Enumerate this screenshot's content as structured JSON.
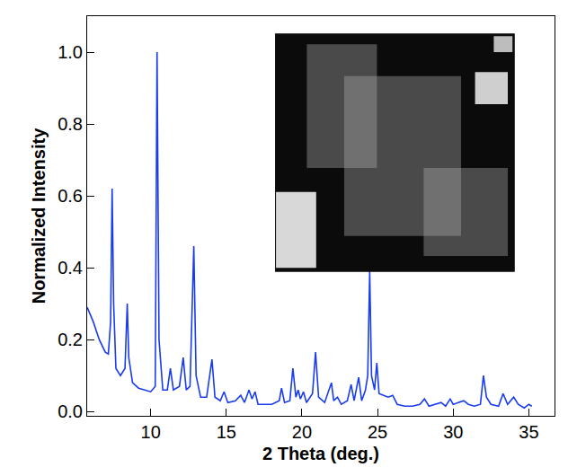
{
  "chart_data": {
    "type": "line",
    "x_label": "2 Theta (deg.)",
    "y_label": "Normalized Intensity",
    "color": "#1a3cf0",
    "grid": false,
    "xlim": [
      5.8,
      36.7
    ],
    "ylim": [
      -0.012,
      1.1
    ],
    "xticks": [
      10,
      15,
      20,
      25,
      30,
      35
    ],
    "yticks": [
      {
        "value": 0,
        "label": "0.0"
      },
      0.2,
      0.4,
      0.6,
      0.8,
      {
        "value": 1,
        "label": "1.0"
      }
    ],
    "x": [
      5.8,
      6.2,
      6.6,
      7.0,
      7.2,
      7.35,
      7.45,
      7.55,
      7.7,
      8.0,
      8.3,
      8.45,
      8.55,
      8.8,
      9.2,
      9.6,
      10.0,
      10.3,
      10.42,
      10.55,
      10.8,
      11.1,
      11.3,
      11.5,
      11.9,
      12.15,
      12.35,
      12.6,
      12.85,
      13.0,
      13.3,
      13.7,
      14.05,
      14.25,
      14.6,
      14.85,
      15.1,
      15.6,
      15.95,
      16.2,
      16.5,
      16.7,
      16.9,
      17.1,
      17.5,
      18.0,
      18.5,
      18.65,
      18.85,
      19.2,
      19.4,
      19.6,
      19.75,
      19.9,
      20.1,
      20.3,
      20.7,
      20.9,
      21.1,
      21.5,
      21.95,
      22.1,
      22.35,
      22.6,
      23.0,
      23.25,
      23.45,
      23.75,
      23.95,
      24.2,
      24.35,
      24.48,
      24.6,
      24.8,
      24.95,
      25.1,
      25.4,
      25.7,
      26.0,
      26.3,
      26.8,
      27.3,
      27.8,
      28.1,
      28.4,
      28.8,
      29.2,
      29.5,
      29.8,
      30.0,
      30.4,
      30.7,
      31.0,
      31.4,
      31.8,
      32.0,
      32.2,
      32.5,
      33.0,
      33.3,
      33.6,
      34.0,
      34.3,
      34.7,
      35.0,
      35.2
    ],
    "values": [
      0.29,
      0.25,
      0.2,
      0.165,
      0.16,
      0.25,
      0.62,
      0.3,
      0.12,
      0.1,
      0.12,
      0.3,
      0.15,
      0.08,
      0.065,
      0.06,
      0.055,
      0.07,
      1.0,
      0.2,
      0.06,
      0.06,
      0.12,
      0.06,
      0.07,
      0.15,
      0.06,
      0.07,
      0.46,
      0.1,
      0.04,
      0.04,
      0.145,
      0.04,
      0.03,
      0.055,
      0.025,
      0.03,
      0.045,
      0.025,
      0.06,
      0.035,
      0.055,
      0.02,
      0.02,
      0.02,
      0.03,
      0.065,
      0.025,
      0.03,
      0.12,
      0.04,
      0.06,
      0.035,
      0.055,
      0.025,
      0.05,
      0.165,
      0.04,
      0.025,
      0.08,
      0.03,
      0.04,
      0.02,
      0.03,
      0.075,
      0.03,
      0.095,
      0.03,
      0.06,
      0.1,
      0.39,
      0.1,
      0.06,
      0.135,
      0.05,
      0.045,
      0.04,
      0.045,
      0.02,
      0.015,
      0.015,
      0.02,
      0.035,
      0.015,
      0.02,
      0.025,
      0.015,
      0.035,
      0.02,
      0.025,
      0.03,
      0.02,
      0.015,
      0.02,
      0.1,
      0.04,
      0.02,
      0.015,
      0.05,
      0.02,
      0.04,
      0.02,
      0.01,
      0.02,
      0.015
    ]
  }
}
